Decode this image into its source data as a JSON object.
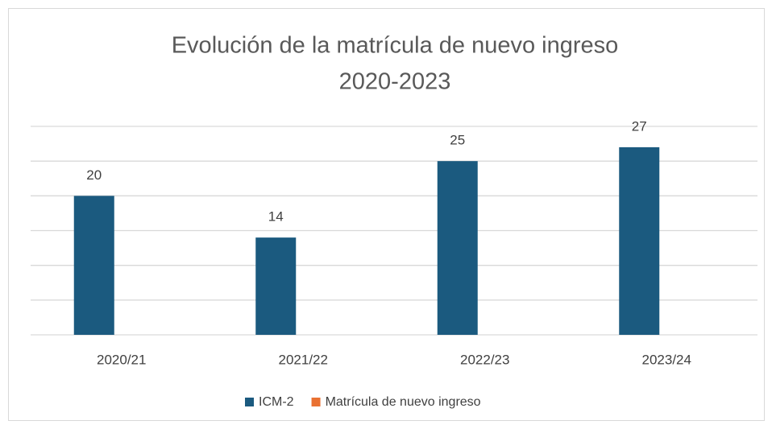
{
  "chart_data": {
    "type": "bar",
    "title": [
      "Evolución de la matrícula de nuevo ingreso",
      "2020-2023"
    ],
    "categories": [
      "2020/21",
      "2021/22",
      "2022/23",
      "2023/24"
    ],
    "series": [
      {
        "name": "ICM-2",
        "color": "#1b5a7f",
        "values": [
          20,
          14,
          25,
          27
        ]
      },
      {
        "name": "Matrícula de nuevo ingreso",
        "color": "#e97132",
        "values": [
          null,
          null,
          null,
          null
        ]
      }
    ],
    "ylim": [
      0,
      30
    ],
    "yticks": [
      0,
      5,
      10,
      15,
      20,
      25,
      30
    ],
    "grid": true,
    "legend": "bottom"
  }
}
